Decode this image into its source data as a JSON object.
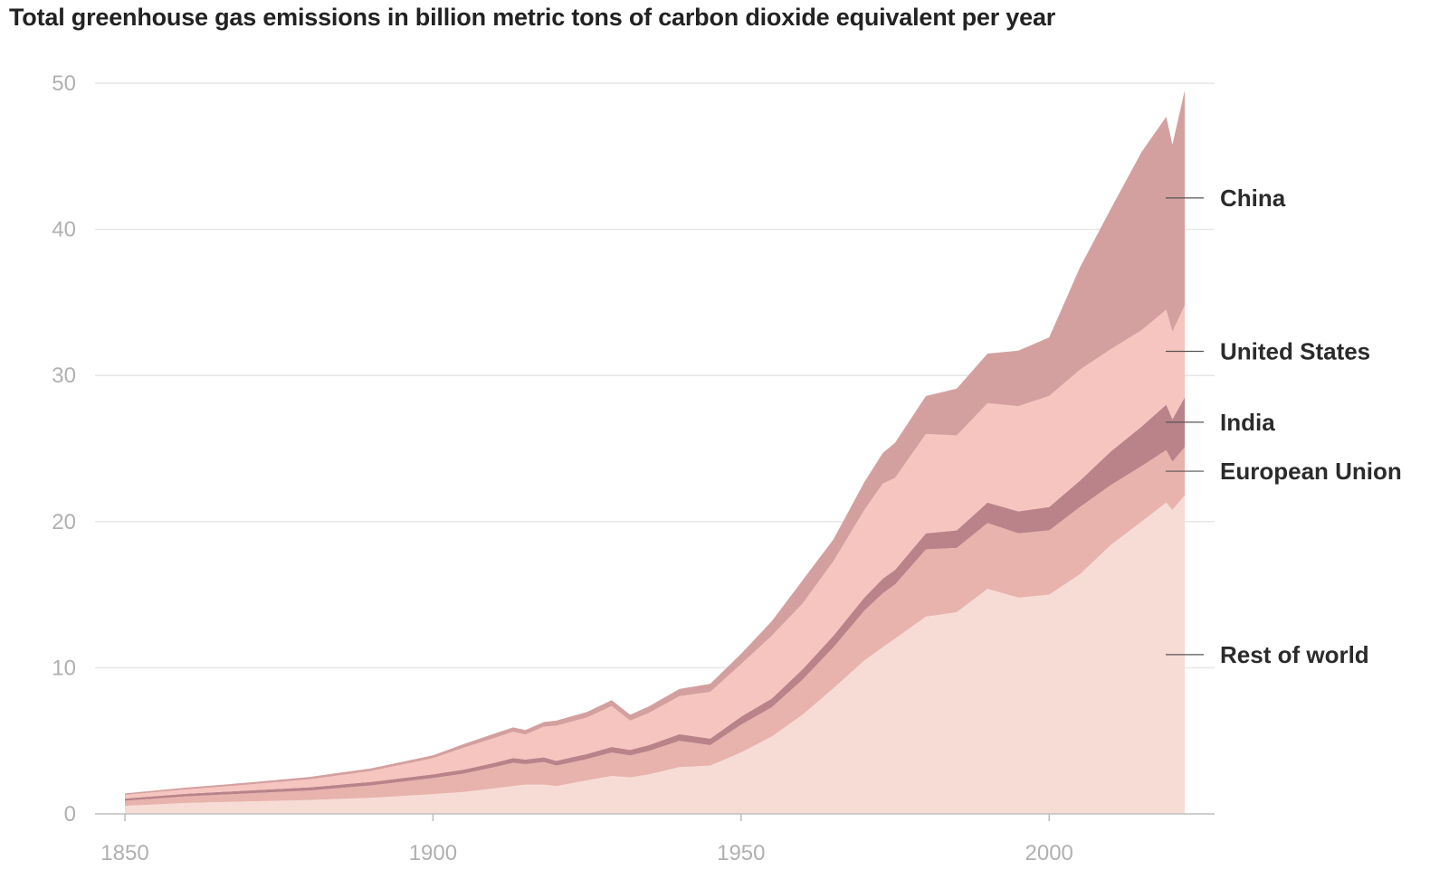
{
  "chart_data": {
    "type": "area",
    "stacked": true,
    "title": "Total greenhouse gas emissions in billion metric tons of carbon dioxide equivalent per year",
    "xlabel": "",
    "ylabel": "",
    "xlim": [
      1850,
      2022
    ],
    "ylim": [
      0,
      50
    ],
    "x_ticks": [
      "1850",
      "1900",
      "1950",
      "2000"
    ],
    "y_ticks": [
      "0",
      "10",
      "20",
      "30",
      "40",
      "50"
    ],
    "grid": "horizontal",
    "legend": "direct labels at right",
    "x": [
      1850,
      1860,
      1870,
      1880,
      1890,
      1900,
      1905,
      1910,
      1913,
      1915,
      1918,
      1920,
      1925,
      1929,
      1932,
      1935,
      1940,
      1945,
      1950,
      1955,
      1960,
      1965,
      1970,
      1973,
      1975,
      1980,
      1985,
      1990,
      1995,
      2000,
      2005,
      2010,
      2015,
      2019,
      2020,
      2022
    ],
    "series": [
      {
        "name": "Rest of world",
        "color": "#f7dcd5",
        "values": [
          0.55,
          0.75,
          0.85,
          0.95,
          1.1,
          1.35,
          1.5,
          1.75,
          1.9,
          2.0,
          2.0,
          1.9,
          2.3,
          2.6,
          2.5,
          2.7,
          3.2,
          3.3,
          4.2,
          5.3,
          6.8,
          8.6,
          10.5,
          11.4,
          12.0,
          13.5,
          13.8,
          15.4,
          14.8,
          15.0,
          16.4,
          18.4,
          20.0,
          21.3,
          20.8,
          21.8
        ]
      },
      {
        "name": "European Union",
        "color": "#e8b3ad",
        "values": [
          0.35,
          0.45,
          0.55,
          0.65,
          0.85,
          1.1,
          1.25,
          1.45,
          1.6,
          1.4,
          1.55,
          1.4,
          1.45,
          1.6,
          1.5,
          1.6,
          1.8,
          1.4,
          1.9,
          2.0,
          2.4,
          2.8,
          3.4,
          3.7,
          3.7,
          4.6,
          4.4,
          4.5,
          4.4,
          4.4,
          4.6,
          4.1,
          3.8,
          3.6,
          3.3,
          3.3
        ]
      },
      {
        "name": "India",
        "color": "#b98389",
        "values": [
          0.15,
          0.18,
          0.2,
          0.22,
          0.24,
          0.26,
          0.28,
          0.3,
          0.32,
          0.32,
          0.32,
          0.33,
          0.35,
          0.38,
          0.38,
          0.4,
          0.45,
          0.45,
          0.55,
          0.6,
          0.7,
          0.8,
          0.9,
          1.0,
          1.0,
          1.1,
          1.2,
          1.4,
          1.5,
          1.6,
          1.8,
          2.3,
          2.7,
          3.1,
          2.9,
          3.4
        ]
      },
      {
        "name": "United States",
        "color": "#f6c5c0",
        "values": [
          0.25,
          0.3,
          0.4,
          0.55,
          0.75,
          1.1,
          1.5,
          1.7,
          1.8,
          1.7,
          2.1,
          2.4,
          2.5,
          2.8,
          2.0,
          2.2,
          2.6,
          3.2,
          3.6,
          4.3,
          4.5,
          5.1,
          6.0,
          6.5,
          6.3,
          6.8,
          6.5,
          6.8,
          7.2,
          7.6,
          7.6,
          7.0,
          6.6,
          6.5,
          6.0,
          6.3
        ]
      },
      {
        "name": "China",
        "color": "#d4a09f",
        "values": [
          0.1,
          0.12,
          0.14,
          0.16,
          0.18,
          0.2,
          0.25,
          0.3,
          0.3,
          0.32,
          0.32,
          0.35,
          0.38,
          0.4,
          0.4,
          0.45,
          0.5,
          0.55,
          0.7,
          1.0,
          1.6,
          1.5,
          1.9,
          2.1,
          2.4,
          2.6,
          3.2,
          3.4,
          3.8,
          4.0,
          7.0,
          9.6,
          12.2,
          13.2,
          12.8,
          14.7
        ]
      }
    ]
  }
}
